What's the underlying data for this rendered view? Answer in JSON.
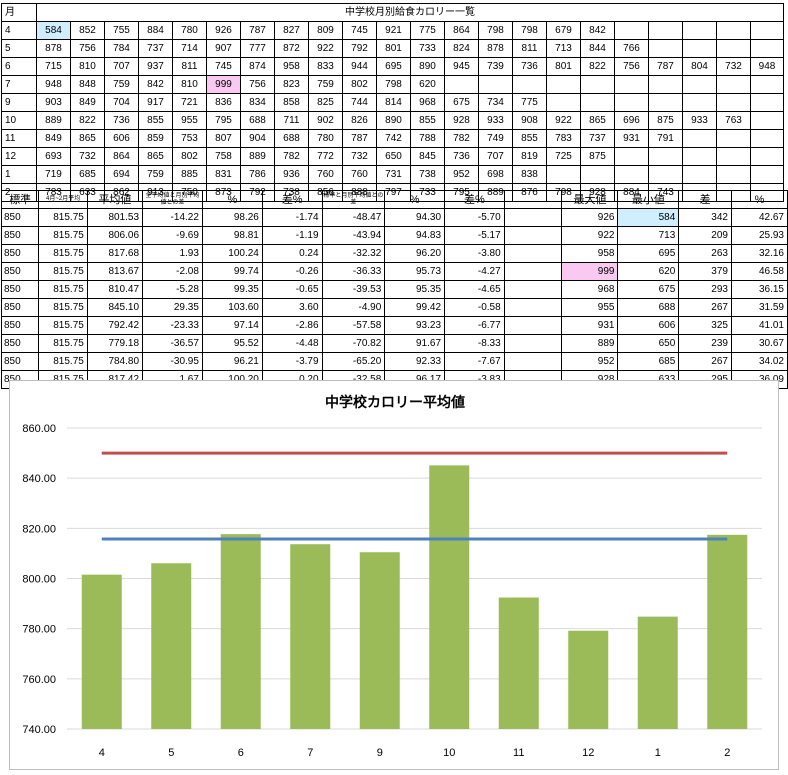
{
  "top_table": {
    "month_header": "月",
    "title": "中学校月別給食カロリー一覧",
    "rows": [
      {
        "month": "4",
        "values": [
          "584",
          "852",
          "755",
          "884",
          "780",
          "926",
          "787",
          "827",
          "809",
          "745",
          "921",
          "775",
          "864",
          "798",
          "798",
          "679",
          "842"
        ]
      },
      {
        "month": "5",
        "values": [
          "878",
          "756",
          "784",
          "737",
          "714",
          "907",
          "777",
          "872",
          "922",
          "792",
          "801",
          "733",
          "824",
          "878",
          "811",
          "713",
          "844",
          "766"
        ]
      },
      {
        "month": "6",
        "values": [
          "715",
          "810",
          "707",
          "937",
          "811",
          "745",
          "874",
          "958",
          "833",
          "944",
          "695",
          "890",
          "945",
          "739",
          "736",
          "801",
          "822",
          "756",
          "787",
          "804",
          "732",
          "948"
        ]
      },
      {
        "month": "7",
        "values": [
          "948",
          "848",
          "759",
          "842",
          "810",
          "999",
          "756",
          "823",
          "759",
          "802",
          "798",
          "620"
        ]
      },
      {
        "month": "9",
        "values": [
          "903",
          "849",
          "704",
          "917",
          "721",
          "836",
          "834",
          "858",
          "825",
          "744",
          "814",
          "968",
          "675",
          "734",
          "775"
        ]
      },
      {
        "month": "10",
        "values": [
          "889",
          "822",
          "736",
          "855",
          "955",
          "795",
          "688",
          "711",
          "902",
          "826",
          "890",
          "855",
          "928",
          "933",
          "908",
          "922",
          "865",
          "696",
          "875",
          "933",
          "763"
        ]
      },
      {
        "month": "11",
        "values": [
          "849",
          "865",
          "606",
          "859",
          "753",
          "807",
          "904",
          "688",
          "780",
          "787",
          "742",
          "788",
          "782",
          "749",
          "855",
          "783",
          "737",
          "931",
          "791"
        ]
      },
      {
        "month": "12",
        "values": [
          "693",
          "732",
          "864",
          "865",
          "802",
          "758",
          "889",
          "782",
          "772",
          "732",
          "650",
          "845",
          "736",
          "707",
          "819",
          "725",
          "875"
        ]
      },
      {
        "month": "1",
        "values": [
          "719",
          "685",
          "694",
          "759",
          "885",
          "831",
          "786",
          "936",
          "760",
          "760",
          "731",
          "738",
          "952",
          "698",
          "838"
        ]
      },
      {
        "month": "2",
        "values": [
          "783",
          "633",
          "862",
          "913",
          "750",
          "873",
          "792",
          "738",
          "856",
          "888",
          "797",
          "733",
          "795",
          "889",
          "876",
          "798",
          "928",
          "884",
          "743"
        ]
      }
    ]
  },
  "stats_table": {
    "headers": {
      "standard": "標準",
      "range_avg": "4月~2月平均",
      "avg": "平均値",
      "diff_from_total": "全平均値と月別平均値との差",
      "pct1": "%",
      "diff_pct1": "差%",
      "diff_from_standard": "標準と月別平均値との差",
      "pct2": "%",
      "diff_pct2": "差%",
      "max": "最大値",
      "min": "最小値",
      "diff": "差",
      "pct3": "%"
    },
    "rows": [
      [
        "850",
        "815.75",
        "801.53",
        "-14.22",
        "98.26",
        "-1.74",
        "-48.47",
        "94.30",
        "-5.70",
        "",
        "926",
        "584",
        "342",
        "42.67"
      ],
      [
        "850",
        "815.75",
        "806.06",
        "-9.69",
        "98.81",
        "-1.19",
        "-43.94",
        "94.83",
        "-5.17",
        "",
        "922",
        "713",
        "209",
        "25.93"
      ],
      [
        "850",
        "815.75",
        "817.68",
        "1.93",
        "100.24",
        "0.24",
        "-32.32",
        "96.20",
        "-3.80",
        "",
        "958",
        "695",
        "263",
        "32.16"
      ],
      [
        "850",
        "815.75",
        "813.67",
        "-2.08",
        "99.74",
        "-0.26",
        "-36.33",
        "95.73",
        "-4.27",
        "",
        "999",
        "620",
        "379",
        "46.58"
      ],
      [
        "850",
        "815.75",
        "810.47",
        "-5.28",
        "99.35",
        "-0.65",
        "-39.53",
        "95.35",
        "-4.65",
        "",
        "968",
        "675",
        "293",
        "36.15"
      ],
      [
        "850",
        "815.75",
        "845.10",
        "29.35",
        "103.60",
        "3.60",
        "-4.90",
        "99.42",
        "-0.58",
        "",
        "955",
        "688",
        "267",
        "31.59"
      ],
      [
        "850",
        "815.75",
        "792.42",
        "-23.33",
        "97.14",
        "-2.86",
        "-57.58",
        "93.23",
        "-6.77",
        "",
        "931",
        "606",
        "325",
        "41.01"
      ],
      [
        "850",
        "815.75",
        "779.18",
        "-36.57",
        "95.52",
        "-4.48",
        "-70.82",
        "91.67",
        "-8.33",
        "",
        "889",
        "650",
        "239",
        "30.67"
      ],
      [
        "850",
        "815.75",
        "784.80",
        "-30.95",
        "96.21",
        "-3.79",
        "-65.20",
        "92.33",
        "-7.67",
        "",
        "952",
        "685",
        "267",
        "34.02"
      ],
      [
        "850",
        "815.75",
        "817.42",
        "1.67",
        "100.20",
        "0.20",
        "-32.58",
        "96.17",
        "-3.83",
        "",
        "928",
        "633",
        "295",
        "36.09"
      ]
    ]
  },
  "colors": {
    "bar": "#9bbb59",
    "standard_line": "#c0504d",
    "average_line": "#4f81bd",
    "highlight_min": "#cfeeff",
    "highlight_max": "#f9c9f2"
  },
  "chart_data": {
    "type": "bar",
    "title": "中学校カロリー平均値",
    "categories": [
      "4",
      "5",
      "6",
      "7",
      "9",
      "10",
      "11",
      "12",
      "1",
      "2"
    ],
    "series": [
      {
        "type": "bar",
        "values": [
          801.53,
          806.06,
          817.68,
          813.67,
          810.47,
          845.1,
          792.42,
          779.18,
          784.8,
          817.42
        ]
      },
      {
        "type": "line",
        "values": [
          850,
          850,
          850,
          850,
          850,
          850,
          850,
          850,
          850,
          850
        ]
      },
      {
        "type": "line",
        "values": [
          815.75,
          815.75,
          815.75,
          815.75,
          815.75,
          815.75,
          815.75,
          815.75,
          815.75,
          815.75
        ]
      }
    ],
    "ylim": [
      740,
      860
    ],
    "yticks": [
      "740.00",
      "760.00",
      "780.00",
      "800.00",
      "820.00",
      "840.00",
      "860.00"
    ],
    "grid": true,
    "legend": "none"
  }
}
